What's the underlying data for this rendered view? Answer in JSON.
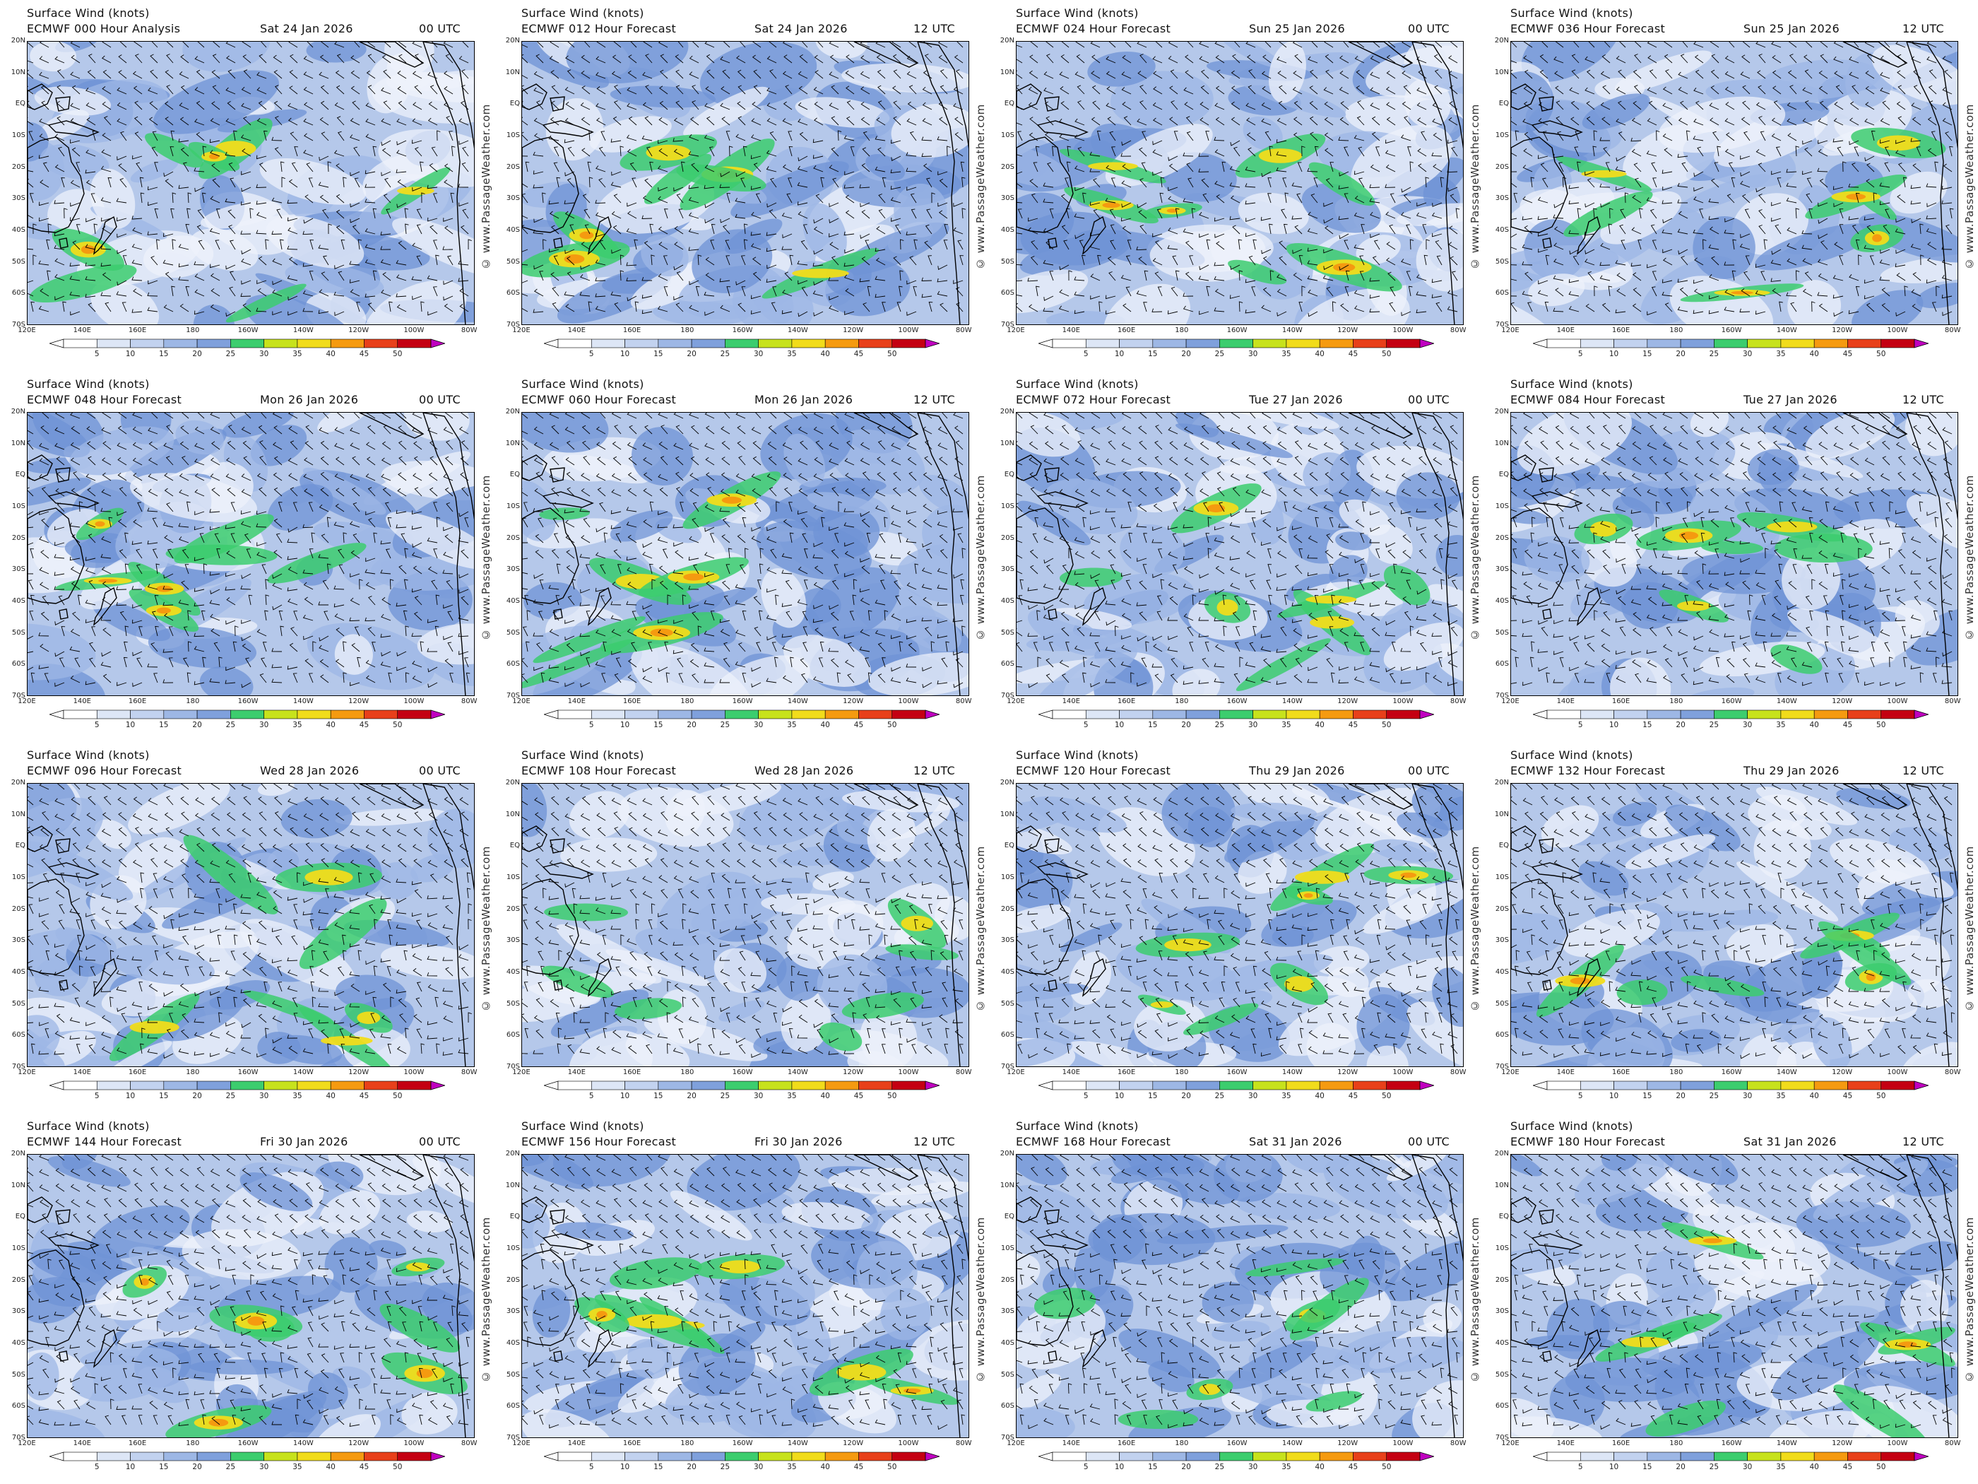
{
  "colors": {
    "calm": "#ffffff",
    "light": "#c5d3ee",
    "moderate": "#7f9ed8",
    "fresh": "#4f7fd1",
    "green": "#3ccd6e",
    "yellow": "#f1dc1b",
    "orange": "#f59a10",
    "red": "#d7191c",
    "magenta": "#c000c0"
  },
  "legend": {
    "ticks": [
      "5",
      "10",
      "15",
      "20",
      "25",
      "30",
      "35",
      "40",
      "45",
      "50"
    ],
    "colors": [
      "#ffffff",
      "#dde6f6",
      "#c2d2ef",
      "#9db7e5",
      "#7fa0dc",
      "#3ccd6e",
      "#c7e21c",
      "#f1dc1b",
      "#f59a10",
      "#e8401a",
      "#c40012",
      "#c000c0"
    ]
  },
  "map": {
    "lat_labels": [
      "20N",
      "10N",
      "EQ",
      "10S",
      "20S",
      "30S",
      "40S",
      "50S",
      "60S",
      "70S"
    ],
    "lon_labels": [
      "120E",
      "140E",
      "160E",
      "180",
      "160W",
      "140W",
      "120W",
      "100W",
      "80W"
    ],
    "watermark": "© www.PassageWeather.com"
  },
  "panels": [
    {
      "title": "Surface Wind (knots)",
      "model": "ECMWF 000 Hour Analysis",
      "date": "Sat 24 Jan 2026",
      "utc": "00 UTC"
    },
    {
      "title": "Surface Wind (knots)",
      "model": "ECMWF 012 Hour Forecast",
      "date": "Sat 24 Jan 2026",
      "utc": "12 UTC"
    },
    {
      "title": "Surface Wind (knots)",
      "model": "ECMWF 024 Hour Forecast",
      "date": "Sun 25 Jan 2026",
      "utc": "00 UTC"
    },
    {
      "title": "Surface Wind (knots)",
      "model": "ECMWF 036 Hour Forecast",
      "date": "Sun 25 Jan 2026",
      "utc": "12 UTC"
    },
    {
      "title": "Surface Wind (knots)",
      "model": "ECMWF 048 Hour Forecast",
      "date": "Mon 26 Jan 2026",
      "utc": "00 UTC"
    },
    {
      "title": "Surface Wind (knots)",
      "model": "ECMWF 060 Hour Forecast",
      "date": "Mon 26 Jan 2026",
      "utc": "12 UTC"
    },
    {
      "title": "Surface Wind (knots)",
      "model": "ECMWF 072 Hour Forecast",
      "date": "Tue 27 Jan 2026",
      "utc": "00 UTC"
    },
    {
      "title": "Surface Wind (knots)",
      "model": "ECMWF 084 Hour Forecast",
      "date": "Tue 27 Jan 2026",
      "utc": "12 UTC"
    },
    {
      "title": "Surface Wind (knots)",
      "model": "ECMWF 096 Hour Forecast",
      "date": "Wed 28 Jan 2026",
      "utc": "00 UTC"
    },
    {
      "title": "Surface Wind (knots)",
      "model": "ECMWF 108 Hour Forecast",
      "date": "Wed 28 Jan 2026",
      "utc": "12 UTC"
    },
    {
      "title": "Surface Wind (knots)",
      "model": "ECMWF 120 Hour Forecast",
      "date": "Thu 29 Jan 2026",
      "utc": "00 UTC"
    },
    {
      "title": "Surface Wind (knots)",
      "model": "ECMWF 132 Hour Forecast",
      "date": "Thu 29 Jan 2026",
      "utc": "12 UTC"
    },
    {
      "title": "Surface Wind (knots)",
      "model": "ECMWF 144 Hour Forecast",
      "date": "Fri 30 Jan 2026",
      "utc": "00 UTC"
    },
    {
      "title": "Surface Wind (knots)",
      "model": "ECMWF 156 Hour Forecast",
      "date": "Fri 30 Jan 2026",
      "utc": "12 UTC"
    },
    {
      "title": "Surface Wind (knots)",
      "model": "ECMWF 168 Hour Forecast",
      "date": "Sat 31 Jan 2026",
      "utc": "00 UTC"
    },
    {
      "title": "Surface Wind (knots)",
      "model": "ECMWF 180 Hour Forecast",
      "date": "Sat 31 Jan 2026",
      "utc": "12 UTC"
    }
  ]
}
